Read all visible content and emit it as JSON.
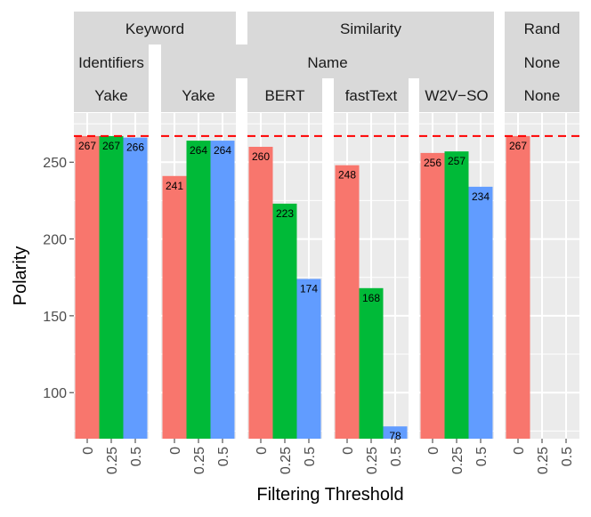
{
  "chart_data": {
    "type": "bar",
    "xlabel": "Filtering Threshold",
    "ylabel": "Polarity",
    "ylim": [
      70,
      282
    ],
    "yticks": [
      100,
      150,
      200,
      250
    ],
    "categories": [
      "0",
      "0.25",
      "0.5"
    ],
    "reference_line": 267,
    "colors": {
      "0": "#F8766D",
      "0.25": "#00BA38",
      "0.5": "#619CFF",
      "reference": "#FF0000",
      "panel_bg": "#EBEBEB",
      "strip_bg": "#D9D9D9"
    },
    "strip_groups": [
      {
        "label": "Keyword",
        "panels": [
          0,
          1
        ]
      },
      {
        "label": "Similarity",
        "panels": [
          2,
          3,
          4
        ]
      },
      {
        "label": "Rand",
        "panels": [
          5
        ]
      }
    ],
    "strip_row2": [
      {
        "label": "Identifiers",
        "panels": [
          0
        ]
      },
      {
        "label": "Name",
        "panels": [
          1,
          2,
          3,
          4
        ]
      },
      {
        "label": "None",
        "panels": [
          5
        ]
      }
    ],
    "panels": [
      {
        "label": "Yake",
        "values": [
          267,
          267,
          266
        ]
      },
      {
        "label": "Yake",
        "values": [
          241,
          264,
          264
        ]
      },
      {
        "label": "BERT",
        "values": [
          260,
          223,
          174
        ]
      },
      {
        "label": "fastText",
        "values": [
          248,
          168,
          78
        ]
      },
      {
        "label": "W2V−SO",
        "values": [
          256,
          257,
          234
        ]
      },
      {
        "label": "None",
        "values": [
          267,
          null,
          null
        ]
      }
    ]
  }
}
